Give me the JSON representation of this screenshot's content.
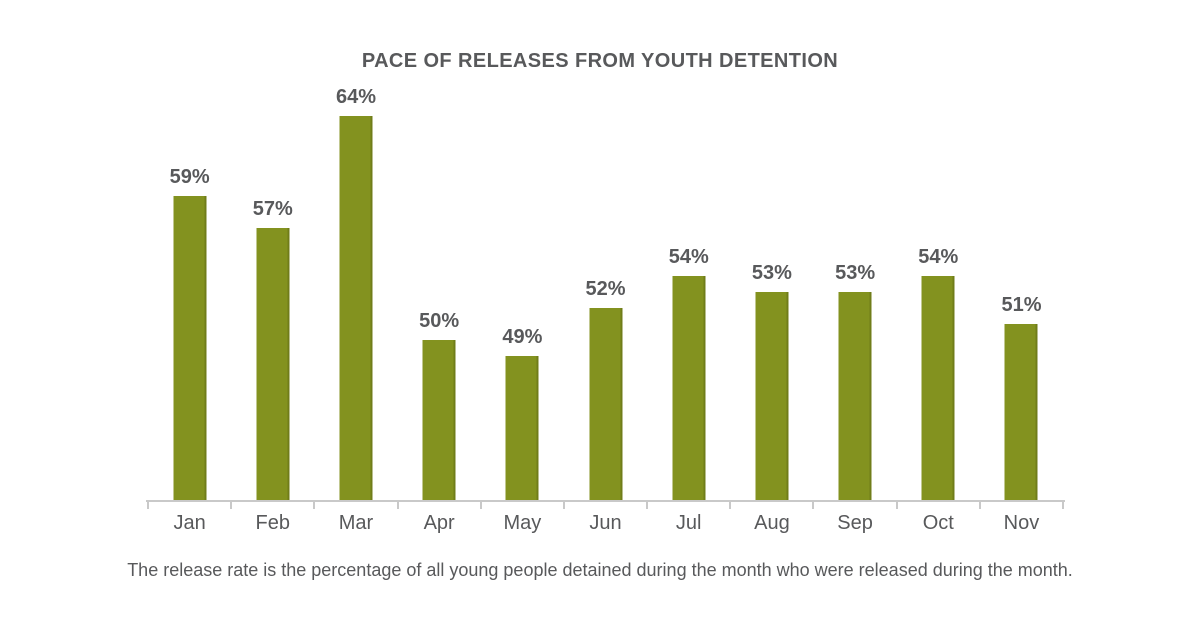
{
  "page": {
    "background": "#ffffff"
  },
  "chart_data": {
    "type": "bar",
    "title": "PACE OF RELEASES FROM YOUTH DETENTION",
    "categories": [
      "Jan",
      "Feb",
      "Mar",
      "Apr",
      "May",
      "Jun",
      "Jul",
      "Aug",
      "Sep",
      "Oct",
      "Nov"
    ],
    "values": [
      59,
      57,
      64,
      50,
      49,
      52,
      54,
      53,
      53,
      54,
      51
    ],
    "value_labels": [
      "59%",
      "57%",
      "64%",
      "50%",
      "49%",
      "52%",
      "54%",
      "53%",
      "53%",
      "54%",
      "51%"
    ],
    "xlabel": "",
    "ylabel": "",
    "ylim": [
      40,
      65
    ],
    "grid": false,
    "legend": "none",
    "data_labels": "above-bars",
    "bar_color": "#83921f",
    "text_color": "#58595b",
    "axis_color": "#c9c9c9",
    "caption": "The release rate is the percentage of all young people detained during the month who were released during the month."
  }
}
